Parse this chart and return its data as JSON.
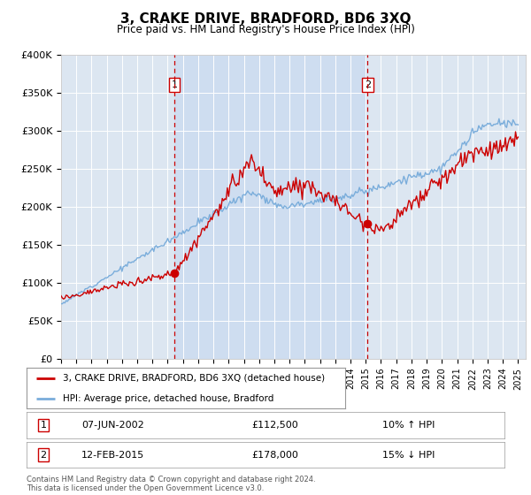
{
  "title": "3, CRAKE DRIVE, BRADFORD, BD6 3XQ",
  "subtitle": "Price paid vs. HM Land Registry's House Price Index (HPI)",
  "legend_line1": "3, CRAKE DRIVE, BRADFORD, BD6 3XQ (detached house)",
  "legend_line2": "HPI: Average price, detached house, Bradford",
  "annotation1_label": "1",
  "annotation1_date": "07-JUN-2002",
  "annotation1_price": "£112,500",
  "annotation1_hpi": "10% ↑ HPI",
  "annotation1_year": 2002.43,
  "annotation1_value": 112500,
  "annotation2_label": "2",
  "annotation2_date": "12-FEB-2015",
  "annotation2_price": "£178,000",
  "annotation2_hpi": "15% ↓ HPI",
  "annotation2_year": 2015.12,
  "annotation2_value": 178000,
  "plot_bg_color": "#dce6f1",
  "shade_color": "#c5d8f0",
  "red_color": "#cc0000",
  "blue_color": "#7aaddb",
  "ylim": [
    0,
    400000
  ],
  "yticks": [
    0,
    50000,
    100000,
    150000,
    200000,
    250000,
    300000,
    350000,
    400000
  ],
  "ytick_labels": [
    "£0",
    "£50K",
    "£100K",
    "£150K",
    "£200K",
    "£250K",
    "£300K",
    "£350K",
    "£400K"
  ],
  "footer": "Contains HM Land Registry data © Crown copyright and database right 2024.\nThis data is licensed under the Open Government Licence v3.0."
}
